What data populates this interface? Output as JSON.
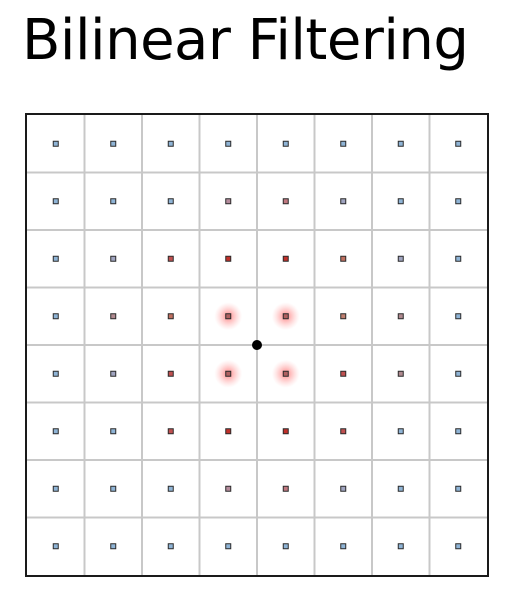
{
  "slide": {
    "title": "Bilinear Filtering"
  },
  "grid": {
    "cols": 8,
    "rows": 8,
    "line_color": "#c8c8c8",
    "frame_color": "#1a1a1a",
    "sample_point_color": "#000000",
    "highlight_glow_color": "#ff6b6b",
    "texel_colors": [
      [
        "#8fb4d6",
        "#8fb4d6",
        "#8fb4d6",
        "#8fb4d6",
        "#8fb4d6",
        "#8fb4d6",
        "#8fb4d6",
        "#8fb4d6"
      ],
      [
        "#8fb4d6",
        "#8fb4d6",
        "#8fb4d6",
        "#b58c9c",
        "#c07880",
        "#a0a4c0",
        "#8fb4d6",
        "#8fb4d6"
      ],
      [
        "#8fb4d6",
        "#a0a4c0",
        "#c05050",
        "#c0302a",
        "#c0302a",
        "#c07060",
        "#a0a4c0",
        "#8fb4d6"
      ],
      [
        "#8fb4d6",
        "#b08a90",
        "#c07060",
        "#b06060",
        "#b06060",
        "#c08070",
        "#b08a90",
        "#8fb4d6"
      ],
      [
        "#8fb4d6",
        "#a0a4c0",
        "#c05050",
        "#b06060",
        "#b06060",
        "#c05050",
        "#b08a90",
        "#8fb4d6"
      ],
      [
        "#8fb4d6",
        "#8fb4d6",
        "#c05050",
        "#c0302a",
        "#c0302a",
        "#c05050",
        "#8fb4d6",
        "#8fb4d6"
      ],
      [
        "#8fb4d6",
        "#8fb4d6",
        "#8fb4d6",
        "#b58c9c",
        "#c07880",
        "#a0a4c0",
        "#8fb4d6",
        "#8fb4d6"
      ],
      [
        "#8fb4d6",
        "#8fb4d6",
        "#8fb4d6",
        "#8fb4d6",
        "#8fb4d6",
        "#8fb4d6",
        "#8fb4d6",
        "#8fb4d6"
      ]
    ],
    "highlighted_texels": [
      {
        "row": 3,
        "col": 3
      },
      {
        "row": 3,
        "col": 4
      },
      {
        "row": 4,
        "col": 3
      },
      {
        "row": 4,
        "col": 4
      }
    ],
    "sample_point": {
      "row": 4,
      "col": 3
    }
  }
}
